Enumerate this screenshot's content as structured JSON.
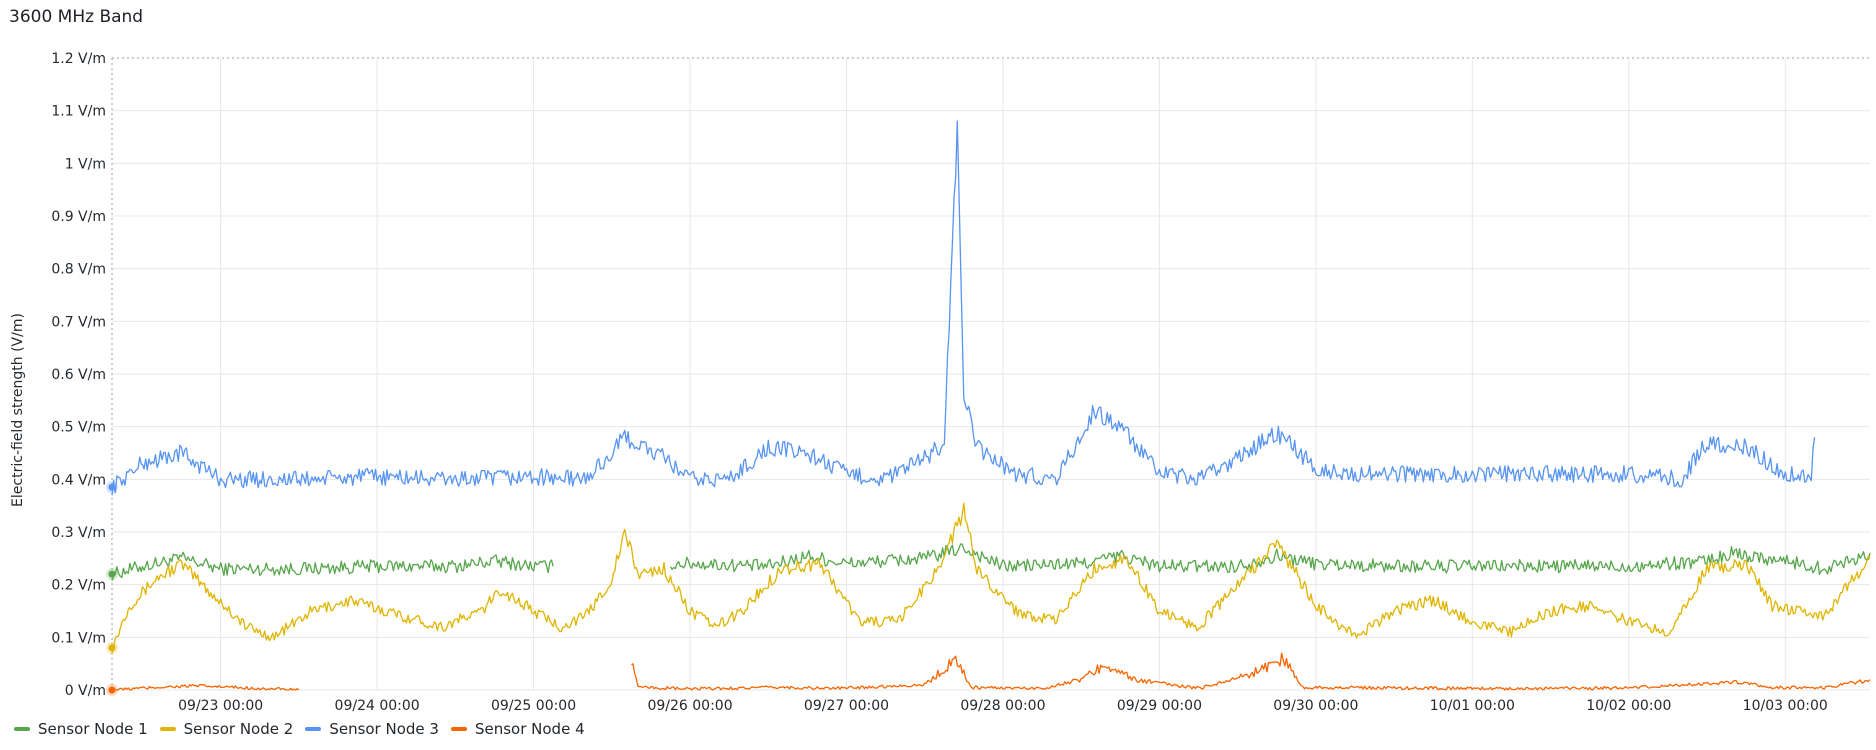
{
  "panel": {
    "title": "3600 MHz Band"
  },
  "chart_data": {
    "type": "line",
    "title": "3600 MHz Band",
    "ylabel": "Electric-field strength (V/m)",
    "xlabel": "",
    "ylim": [
      0,
      1.2
    ],
    "yticks": [
      0,
      0.1,
      0.2,
      0.3,
      0.4,
      0.5,
      0.6,
      0.7,
      0.8,
      0.9,
      1.0,
      1.1,
      1.2
    ],
    "ytick_labels": [
      "0 V/m",
      "0.1 V/m",
      "0.2 V/m",
      "0.3 V/m",
      "0.4 V/m",
      "0.5 V/m",
      "0.6 V/m",
      "0.7 V/m",
      "0.8 V/m",
      "0.9 V/m",
      "1 V/m",
      "1.1 V/m",
      "1.2 V/m"
    ],
    "xlim": [
      "09/22 07:20",
      "10/03 13:00"
    ],
    "xticks": [
      "09/23 00:00",
      "09/24 00:00",
      "09/25 00:00",
      "09/26 00:00",
      "09/27 00:00",
      "09/28 00:00",
      "09/29 00:00",
      "09/30 00:00",
      "10/01 00:00",
      "10/02 00:00",
      "10/03 00:00"
    ],
    "grid": true,
    "legend": "bottom-left",
    "series": [
      {
        "name": "Sensor Node 1",
        "color": "#56a64b",
        "points": [
          [
            "09/22 07:20",
            0.22
          ],
          [
            "09/22 12:00",
            0.235
          ],
          [
            "09/22 18:00",
            0.25
          ],
          [
            "09/23 00:00",
            0.23
          ],
          [
            "09/23 12:00",
            0.23
          ],
          [
            "09/24 00:00",
            0.235
          ],
          [
            "09/24 12:00",
            0.235
          ],
          [
            "09/24 18:00",
            0.245
          ],
          [
            "09/25 00:00",
            0.235
          ],
          [
            "09/25 03:00",
            0.235
          ],
          null,
          [
            "09/25 21:00",
            0.24
          ],
          [
            "09/26 00:00",
            0.24
          ],
          [
            "09/26 12:00",
            0.235
          ],
          [
            "09/26 18:00",
            0.255
          ],
          [
            "09/27 00:00",
            0.24
          ],
          [
            "09/27 12:00",
            0.25
          ],
          [
            "09/27 18:00",
            0.27
          ],
          [
            "09/28 00:00",
            0.235
          ],
          [
            "09/28 12:00",
            0.24
          ],
          [
            "09/28 18:00",
            0.255
          ],
          [
            "09/29 00:00",
            0.235
          ],
          [
            "09/29 12:00",
            0.235
          ],
          [
            "09/29 18:00",
            0.255
          ],
          [
            "09/30 00:00",
            0.24
          ],
          [
            "09/30 12:00",
            0.235
          ],
          [
            "10/01 00:00",
            0.235
          ],
          [
            "10/01 12:00",
            0.235
          ],
          [
            "10/02 00:00",
            0.235
          ],
          [
            "10/02 12:00",
            0.245
          ],
          [
            "10/02 16:00",
            0.26
          ],
          [
            "10/03 00:00",
            0.245
          ],
          [
            "10/03 06:00",
            0.23
          ],
          [
            "10/03 13:00",
            0.26
          ]
        ]
      },
      {
        "name": "Sensor Node 2",
        "color": "#e0b400",
        "points": [
          [
            "09/22 07:20",
            0.08
          ],
          [
            "09/22 10:00",
            0.16
          ],
          [
            "09/22 14:00",
            0.21
          ],
          [
            "09/22 18:00",
            0.24
          ],
          [
            "09/22 22:00",
            0.19
          ],
          [
            "09/23 04:00",
            0.12
          ],
          [
            "09/23 08:00",
            0.1
          ],
          [
            "09/23 14:00",
            0.15
          ],
          [
            "09/23 20:00",
            0.17
          ],
          [
            "09/24 04:00",
            0.14
          ],
          [
            "09/24 10:00",
            0.12
          ],
          [
            "09/24 16:00",
            0.15
          ],
          [
            "09/24 19:00",
            0.19
          ],
          [
            "09/25 00:00",
            0.15
          ],
          [
            "09/25 04:00",
            0.12
          ],
          [
            "09/25 08:00",
            0.14
          ],
          [
            "09/25 12:00",
            0.21
          ],
          [
            "09/25 14:00",
            0.3
          ],
          [
            "09/25 16:00",
            0.22
          ],
          [
            "09/25 20:00",
            0.23
          ],
          [
            "09/26 00:00",
            0.15
          ],
          [
            "09/26 04:00",
            0.12
          ],
          [
            "09/26 08:00",
            0.15
          ],
          [
            "09/26 14:00",
            0.23
          ],
          [
            "09/26 20:00",
            0.24
          ],
          [
            "09/27 02:00",
            0.13
          ],
          [
            "09/27 08:00",
            0.13
          ],
          [
            "09/27 14:00",
            0.23
          ],
          [
            "09/27 18:00",
            0.34
          ],
          [
            "09/27 20:00",
            0.23
          ],
          [
            "09/28 02:00",
            0.15
          ],
          [
            "09/28 08:00",
            0.13
          ],
          [
            "09/28 14:00",
            0.23
          ],
          [
            "09/28 19:00",
            0.25
          ],
          [
            "09/29 00:00",
            0.15
          ],
          [
            "09/29 06:00",
            0.12
          ],
          [
            "09/29 12:00",
            0.2
          ],
          [
            "09/29 18:00",
            0.28
          ],
          [
            "09/30 00:00",
            0.16
          ],
          [
            "09/30 06:00",
            0.1
          ],
          [
            "09/30 12:00",
            0.15
          ],
          [
            "09/30 18:00",
            0.17
          ],
          [
            "10/01 00:00",
            0.13
          ],
          [
            "10/01 06:00",
            0.11
          ],
          [
            "10/01 12:00",
            0.15
          ],
          [
            "10/01 18:00",
            0.16
          ],
          [
            "10/02 00:00",
            0.13
          ],
          [
            "10/02 06:00",
            0.11
          ],
          [
            "10/02 12:00",
            0.23
          ],
          [
            "10/02 18:00",
            0.24
          ],
          [
            "10/02 22:00",
            0.16
          ],
          [
            "10/03 06:00",
            0.14
          ],
          [
            "10/03 13:00",
            0.25
          ]
        ]
      },
      {
        "name": "Sensor Node 3",
        "color": "#5794f2",
        "points": [
          [
            "09/22 07:20",
            0.385
          ],
          [
            "09/22 12:00",
            0.43
          ],
          [
            "09/22 18:00",
            0.45
          ],
          [
            "09/23 00:00",
            0.4
          ],
          [
            "09/23 12:00",
            0.4
          ],
          [
            "09/24 00:00",
            0.405
          ],
          [
            "09/24 12:00",
            0.4
          ],
          [
            "09/25 00:00",
            0.405
          ],
          [
            "09/25 08:00",
            0.4
          ],
          [
            "09/25 12:00",
            0.45
          ],
          [
            "09/25 14:00",
            0.48
          ],
          [
            "09/25 20:00",
            0.44
          ],
          [
            "09/26 00:00",
            0.4
          ],
          [
            "09/26 06:00",
            0.4
          ],
          [
            "09/26 12:00",
            0.46
          ],
          [
            "09/26 18:00",
            0.45
          ],
          [
            "09/27 00:00",
            0.41
          ],
          [
            "09/27 06:00",
            0.4
          ],
          [
            "09/27 12:00",
            0.44
          ],
          [
            "09/27 15:00",
            0.47
          ],
          [
            "09/27 17:00",
            1.07
          ],
          [
            "09/27 18:00",
            0.56
          ],
          [
            "09/27 20:00",
            0.46
          ],
          [
            "09/28 02:00",
            0.41
          ],
          [
            "09/28 08:00",
            0.4
          ],
          [
            "09/28 12:00",
            0.48
          ],
          [
            "09/28 14:00",
            0.53
          ],
          [
            "09/28 18:00",
            0.5
          ],
          [
            "09/29 00:00",
            0.41
          ],
          [
            "09/29 06:00",
            0.4
          ],
          [
            "09/29 12:00",
            0.44
          ],
          [
            "09/29 18:00",
            0.49
          ],
          [
            "09/30 00:00",
            0.42
          ],
          [
            "09/30 06:00",
            0.41
          ],
          [
            "09/30 12:00",
            0.41
          ],
          [
            "10/01 00:00",
            0.41
          ],
          [
            "10/01 12:00",
            0.41
          ],
          [
            "10/02 00:00",
            0.41
          ],
          [
            "10/02 08:00",
            0.4
          ],
          [
            "10/02 12:00",
            0.47
          ],
          [
            "10/02 18:00",
            0.46
          ],
          [
            "10/03 00:00",
            0.41
          ],
          [
            "10/03 04:00",
            0.41
          ],
          [
            "10/03 04:30",
            0.48
          ]
        ]
      },
      {
        "name": "Sensor Node 4",
        "color": "#fa6400",
        "points": [
          [
            "09/22 07:20",
            0.0
          ],
          [
            "09/22 14:00",
            0.005
          ],
          [
            "09/22 20:00",
            0.008
          ],
          [
            "09/23 06:00",
            0.003
          ],
          [
            "09/23 12:00",
            0.0
          ],
          null,
          [
            "09/25 15:00",
            0.06
          ],
          [
            "09/25 16:00",
            0.005
          ],
          [
            "09/26 00:00",
            0.002
          ],
          [
            "09/26 14:00",
            0.005
          ],
          [
            "09/26 22:00",
            0.003
          ],
          [
            "09/27 12:00",
            0.01
          ],
          [
            "09/27 17:00",
            0.06
          ],
          [
            "09/27 19:00",
            0.005
          ],
          [
            "09/28 06:00",
            0.003
          ],
          [
            "09/28 12:00",
            0.02
          ],
          [
            "09/28 16:00",
            0.05
          ],
          [
            "09/28 20:00",
            0.02
          ],
          [
            "09/29 06:00",
            0.003
          ],
          [
            "09/29 14:00",
            0.03
          ],
          [
            "09/29 19:00",
            0.06
          ],
          [
            "09/29 22:00",
            0.005
          ],
          [
            "09/30 12:00",
            0.004
          ],
          [
            "10/01 00:00",
            0.003
          ],
          [
            "10/01 12:00",
            0.003
          ],
          [
            "10/02 00:00",
            0.004
          ],
          [
            "10/02 16:00",
            0.015
          ],
          [
            "10/02 22:00",
            0.005
          ],
          [
            "10/03 06:00",
            0.004
          ],
          [
            "10/03 13:00",
            0.02
          ]
        ]
      }
    ]
  },
  "legend": {
    "items": [
      {
        "label": "Sensor Node 1",
        "color": "#56a64b"
      },
      {
        "label": "Sensor Node 2",
        "color": "#e0b400"
      },
      {
        "label": "Sensor Node 3",
        "color": "#5794f2"
      },
      {
        "label": "Sensor Node 4",
        "color": "#fa6400"
      }
    ]
  }
}
